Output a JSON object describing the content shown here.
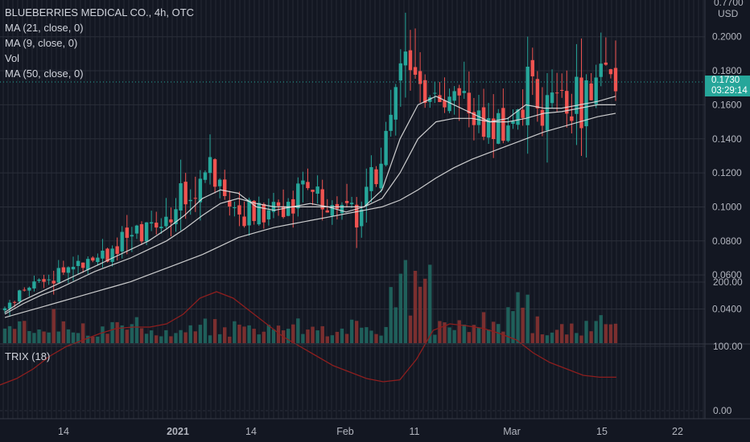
{
  "header": {
    "title": "BLUEBERRIES MEDICAL CO., 4h, OTC",
    "indicators": [
      "MA (21, close, 0)",
      "MA (9, close, 0)",
      "Vol",
      "MA (50, close, 0)"
    ]
  },
  "price_tag": {
    "price": "0.1730",
    "countdown": "03:29:14"
  },
  "trix_label": "TRIX (18)",
  "colors": {
    "background": "#131722",
    "up": "#26a69a",
    "down": "#ef5350",
    "trix": "#8e1e1e",
    "ma": "#e0e0e0"
  },
  "chart_data": [
    {
      "type": "candlestick",
      "title": "BLUEBERRIES MEDICAL CO., 4h, OTC",
      "currency": "USD",
      "y_ticks": [
        "0.0400",
        "0.0600",
        "0.0800",
        "0.1000",
        "0.1200",
        "0.1400",
        "0.1600",
        "0.1800",
        "0.2000"
      ],
      "y_top_partial": "0.7700",
      "ylim": [
        0.03,
        0.22
      ],
      "x_ticks": [
        "14",
        "2021",
        "14",
        "Feb",
        "11",
        "Mar",
        "15",
        "22"
      ],
      "last_price": 0.173,
      "close_path": [
        0.04,
        0.05,
        0.055,
        0.06,
        0.065,
        0.07,
        0.072,
        0.08,
        0.085,
        0.09,
        0.1,
        0.11,
        0.12,
        0.11,
        0.1,
        0.095,
        0.1,
        0.105,
        0.11,
        0.1,
        0.097,
        0.1,
        0.12,
        0.17,
        0.19,
        0.17,
        0.16,
        0.155,
        0.15,
        0.14,
        0.15,
        0.17,
        0.165,
        0.16,
        0.165,
        0.17,
        0.173
      ],
      "ma_series": [
        {
          "name": "MA (9, close, 0)",
          "values": [
            0.038,
            0.045,
            0.05,
            0.055,
            0.06,
            0.065,
            0.07,
            0.075,
            0.08,
            0.087,
            0.095,
            0.105,
            0.11,
            0.108,
            0.1,
            0.098,
            0.1,
            0.102,
            0.1,
            0.097,
            0.1,
            0.11,
            0.14,
            0.16,
            0.165,
            0.16,
            0.155,
            0.15,
            0.152,
            0.16,
            0.158,
            0.158,
            0.16,
            0.162,
            0.165
          ]
        },
        {
          "name": "MA (21, close, 0)",
          "values": [
            0.037,
            0.043,
            0.048,
            0.052,
            0.057,
            0.062,
            0.066,
            0.07,
            0.075,
            0.08,
            0.087,
            0.095,
            0.102,
            0.105,
            0.102,
            0.1,
            0.1,
            0.1,
            0.1,
            0.1,
            0.1,
            0.105,
            0.12,
            0.14,
            0.15,
            0.152,
            0.152,
            0.15,
            0.15,
            0.152,
            0.155,
            0.156,
            0.158,
            0.16,
            0.16
          ]
        },
        {
          "name": "MA (50, close, 0)",
          "values": [
            0.035,
            0.038,
            0.041,
            0.044,
            0.047,
            0.05,
            0.053,
            0.056,
            0.06,
            0.064,
            0.068,
            0.072,
            0.077,
            0.082,
            0.085,
            0.088,
            0.09,
            0.092,
            0.094,
            0.096,
            0.098,
            0.1,
            0.104,
            0.11,
            0.117,
            0.123,
            0.128,
            0.132,
            0.136,
            0.14,
            0.144,
            0.147,
            0.15,
            0.153,
            0.155
          ]
        }
      ]
    },
    {
      "type": "line",
      "title": "TRIX (18)",
      "y_ticks": [
        "0.00",
        "100.00",
        "200.00"
      ],
      "ylim": [
        -10,
        210
      ],
      "values": [
        40,
        50,
        65,
        85,
        100,
        110,
        120,
        128,
        130,
        130,
        135,
        150,
        175,
        185,
        175,
        155,
        135,
        115,
        100,
        85,
        70,
        60,
        50,
        45,
        48,
        80,
        125,
        135,
        132,
        128,
        120,
        110,
        90,
        75,
        65,
        55,
        52,
        52
      ]
    }
  ]
}
